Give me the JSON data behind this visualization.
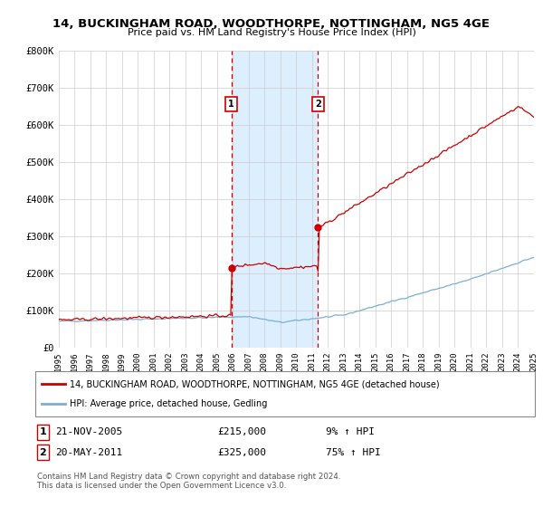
{
  "title": "14, BUCKINGHAM ROAD, WOODTHORPE, NOTTINGHAM, NG5 4GE",
  "subtitle": "Price paid vs. HM Land Registry's House Price Index (HPI)",
  "legend_line1": "14, BUCKINGHAM ROAD, WOODTHORPE, NOTTINGHAM, NG5 4GE (detached house)",
  "legend_line2": "HPI: Average price, detached house, Gedling",
  "annotation1_label": "1",
  "annotation1_date": "21-NOV-2005",
  "annotation1_price": "£215,000",
  "annotation1_hpi": "9% ↑ HPI",
  "annotation2_label": "2",
  "annotation2_date": "20-MAY-2011",
  "annotation2_price": "£325,000",
  "annotation2_hpi": "75% ↑ HPI",
  "footer": "Contains HM Land Registry data © Crown copyright and database right 2024.\nThis data is licensed under the Open Government Licence v3.0.",
  "red_line_color": "#cc0000",
  "blue_line_color": "#7bafd4",
  "shade_color": "#ddeeff",
  "vline_color": "#cc0000",
  "ylim": [
    0,
    800000
  ],
  "yticks": [
    0,
    100000,
    200000,
    300000,
    400000,
    500000,
    600000,
    700000,
    800000
  ],
  "ytick_labels": [
    "£0",
    "£100K",
    "£200K",
    "£300K",
    "£400K",
    "£500K",
    "£600K",
    "£700K",
    "£800K"
  ],
  "sale1_x": 2005.9,
  "sale1_y": 215000,
  "sale2_x": 2011.38,
  "sale2_y": 325000,
  "xmin": 1995,
  "xmax": 2025
}
